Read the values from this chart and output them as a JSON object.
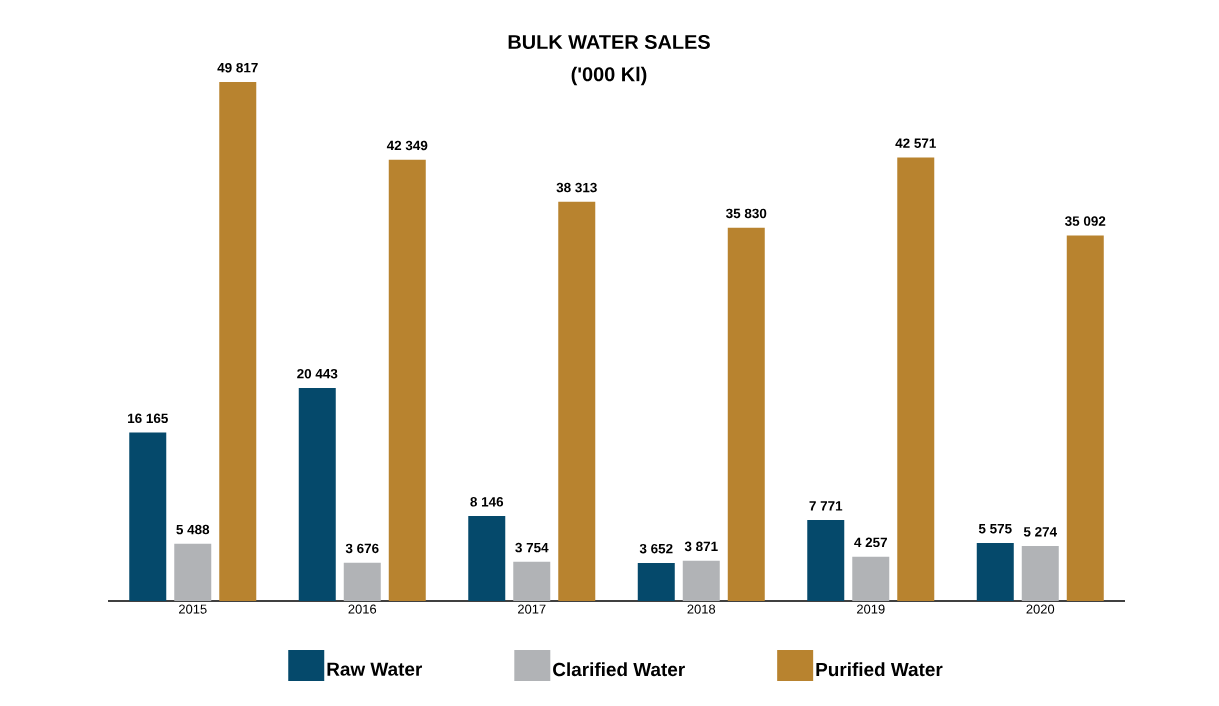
{
  "chart_data": {
    "type": "bar",
    "title": "BULK WATER SALES",
    "subtitle": "('000 Kl)",
    "categories": [
      "2015",
      "2016",
      "2017",
      "2018",
      "2019",
      "2020"
    ],
    "series": [
      {
        "name": "Raw Water",
        "color": "#05496b",
        "values": [
          16165,
          20443,
          8146,
          3652,
          7771,
          5575
        ],
        "value_labels": [
          "16 165",
          "20 443",
          "8 146",
          "3 652",
          "7 771",
          "5 575"
        ]
      },
      {
        "name": "Clarified Water",
        "color": "#b1b3b6",
        "values": [
          5488,
          3676,
          3754,
          3871,
          4257,
          5274
        ],
        "value_labels": [
          "5 488",
          "3 676",
          "3 754",
          "3 871",
          "4 257",
          "5 274"
        ]
      },
      {
        "name": "Purified Water",
        "color": "#b8832f",
        "values": [
          49817,
          42349,
          38313,
          35830,
          42571,
          35092
        ],
        "value_labels": [
          "49 817",
          "42 349",
          "38 313",
          "35 830",
          "42 571",
          "35 092"
        ]
      }
    ],
    "legend": "bottom"
  }
}
